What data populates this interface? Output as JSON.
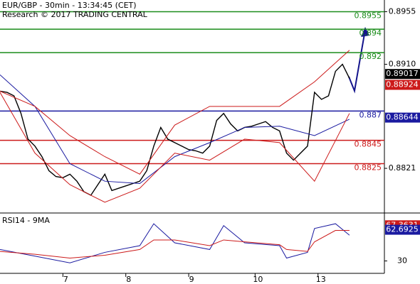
{
  "chart_data": [
    {
      "type": "line",
      "title": "EUR/GBP - 30min - 13:34:45 (CET)",
      "subtitle": "Research © 2017 TRADING CENTRAL",
      "xlim": [
        0,
        55
      ],
      "ylim": [
        0.8784,
        0.8965
      ],
      "yticks": [
        0.8955,
        {
          "value": 0.891,
          "label": "0.8910"
        },
        0.8821
      ],
      "series": [
        {
          "name": "Price",
          "color": "#000000",
          "x": [
            0,
            1,
            2,
            3,
            4,
            5,
            6,
            7,
            8,
            9,
            10,
            11,
            12,
            13,
            14,
            15,
            16,
            17,
            18,
            19,
            20,
            21,
            22,
            23,
            24,
            25,
            26,
            27,
            28,
            29,
            30,
            31,
            32,
            33,
            34,
            35,
            36,
            37,
            38,
            39,
            40,
            41,
            42,
            43,
            44,
            45,
            46,
            47,
            48,
            49,
            50
          ],
          "values": [
            0.8887,
            0.8886,
            0.8883,
            0.8868,
            0.8846,
            0.884,
            0.8831,
            0.8819,
            0.8814,
            0.8813,
            0.8816,
            0.881,
            0.8801,
            0.8798,
            0.8807,
            0.8816,
            0.8802,
            0.8804,
            0.8806,
            0.8808,
            0.881,
            0.8819,
            0.884,
            0.8856,
            0.8846,
            0.8843,
            0.884,
            0.8837,
            0.8836,
            0.8834,
            0.884,
            0.8862,
            0.8868,
            0.8859,
            0.8853,
            0.8856,
            0.8857,
            0.8859,
            0.8861,
            0.8856,
            0.8853,
            0.8834,
            0.8828,
            0.8834,
            0.884,
            0.8886,
            0.888,
            0.8883,
            0.8904,
            0.891,
            0.8898
          ]
        },
        {
          "name": "MA",
          "color": "#1a1aa0",
          "x": [
            0,
            5,
            10,
            15,
            20,
            25,
            30,
            35,
            40,
            45,
            50
          ],
          "values": [
            0.8901,
            0.8874,
            0.8825,
            0.881,
            0.8808,
            0.8831,
            0.8843,
            0.8856,
            0.8857,
            0.8849,
            0.8863
          ]
        },
        {
          "name": "Upper band",
          "color": "#cc1a1a",
          "x": [
            0,
            5,
            10,
            15,
            20,
            25,
            30,
            35,
            40,
            45,
            50
          ],
          "values": [
            0.8887,
            0.8874,
            0.8849,
            0.8831,
            0.8816,
            0.8858,
            0.8874,
            0.8874,
            0.8874,
            0.8895,
            0.8922
          ]
        },
        {
          "name": "Lower band",
          "color": "#cc1a1a",
          "x": [
            0,
            5,
            10,
            15,
            20,
            25,
            30,
            35,
            40,
            45,
            50
          ],
          "values": [
            0.8886,
            0.8834,
            0.8807,
            0.8792,
            0.8804,
            0.8834,
            0.8828,
            0.8846,
            0.8843,
            0.881,
            0.8868
          ]
        }
      ],
      "levels": [
        {
          "value": 0.8955,
          "color": "#1a8c1a"
        },
        {
          "value": 0.894,
          "color": "#1a8c1a"
        },
        {
          "value": 0.892,
          "color": "#1a8c1a"
        },
        {
          "value": 0.887,
          "color": "#1a1aa0"
        },
        {
          "value": 0.8845,
          "color": "#cc1a1a"
        },
        {
          "value": 0.8825,
          "color": "#cc1a1a"
        }
      ],
      "markers": [
        {
          "value": 0.89017,
          "color": "#000000"
        },
        {
          "value": 0.88924,
          "color": "#cc1a1a"
        },
        {
          "value": 0.88644,
          "color": "#1a1aa0"
        }
      ]
    },
    {
      "type": "line",
      "title": "RSI14 - 9MA",
      "xlim": [
        0,
        55
      ],
      "ylim": [
        17,
        78
      ],
      "yticks": [
        30
      ],
      "xticks": [
        {
          "value": 9,
          "label": "7"
        },
        {
          "value": 18,
          "label": "8"
        },
        {
          "value": 27,
          "label": "9"
        },
        {
          "value": 36.5,
          "label": "10"
        },
        {
          "value": 45.5,
          "label": "13"
        }
      ],
      "series": [
        {
          "name": "RSI14",
          "color": "#1a1aa0",
          "x": [
            0,
            5,
            10,
            15,
            20,
            22,
            25,
            30,
            32,
            35,
            40,
            41,
            44,
            45,
            48,
            50
          ],
          "values": [
            42,
            35,
            28,
            39,
            46,
            69,
            49,
            42,
            67,
            49,
            46,
            33,
            39,
            64,
            69,
            57
          ]
        },
        {
          "name": "9MA",
          "color": "#cc1a1a",
          "x": [
            0,
            5,
            10,
            15,
            20,
            22,
            25,
            30,
            32,
            35,
            40,
            41,
            44,
            45,
            48,
            50
          ],
          "values": [
            40,
            37,
            33,
            36,
            42,
            52,
            52,
            46,
            52,
            50,
            47,
            42,
            40,
            50,
            62,
            62
          ]
        }
      ],
      "markers": [
        {
          "value": 67.3631,
          "color": "#cc1a1a"
        },
        {
          "value": 62.6925,
          "color": "#1a1aa0"
        }
      ]
    }
  ]
}
